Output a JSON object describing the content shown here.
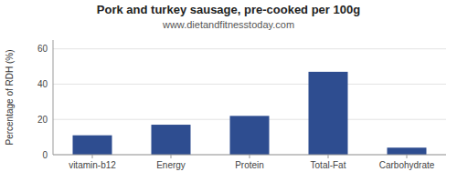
{
  "chart_data": {
    "type": "bar",
    "title": "Pork and turkey sausage, pre-cooked per 100g",
    "subtitle": "www.dietandfitnesstoday.com",
    "categories": [
      "vitamin-b12",
      "Energy",
      "Protein",
      "Total-Fat",
      "Carbohydrate"
    ],
    "values": [
      11,
      17,
      22,
      47,
      4
    ],
    "color": "#2e4d90",
    "ylabel": "Percentage of RDH (%)",
    "ylim": [
      0,
      65
    ],
    "yticks": [
      0,
      20,
      40,
      60
    ],
    "grid": true
  }
}
